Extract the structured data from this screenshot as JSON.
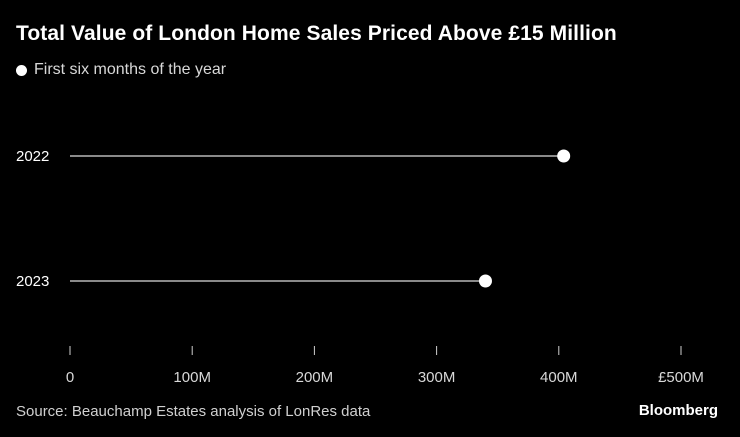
{
  "chart_data": {
    "type": "dot",
    "title": "Total Value of London Home Sales Priced Above £15 Million",
    "legend": "First six months of the year",
    "categories": [
      "2022",
      "2023"
    ],
    "values": [
      404,
      340
    ],
    "xlim": [
      0,
      500
    ],
    "xticks": [
      {
        "value": 0,
        "label": "0"
      },
      {
        "value": 100,
        "label": "100M"
      },
      {
        "value": 200,
        "label": "200M"
      },
      {
        "value": 300,
        "label": "300M"
      },
      {
        "value": 400,
        "label": "400M"
      },
      {
        "value": 500,
        "label": "£500M"
      }
    ],
    "source": "Source: Beauchamp Estates analysis of LonRes data",
    "brand": "Bloomberg",
    "colors": {
      "background": "#000000",
      "dot": "#ffffff",
      "line": "#8a8a8a",
      "text": "#ffffff",
      "muted": "#d8d8d8"
    }
  }
}
